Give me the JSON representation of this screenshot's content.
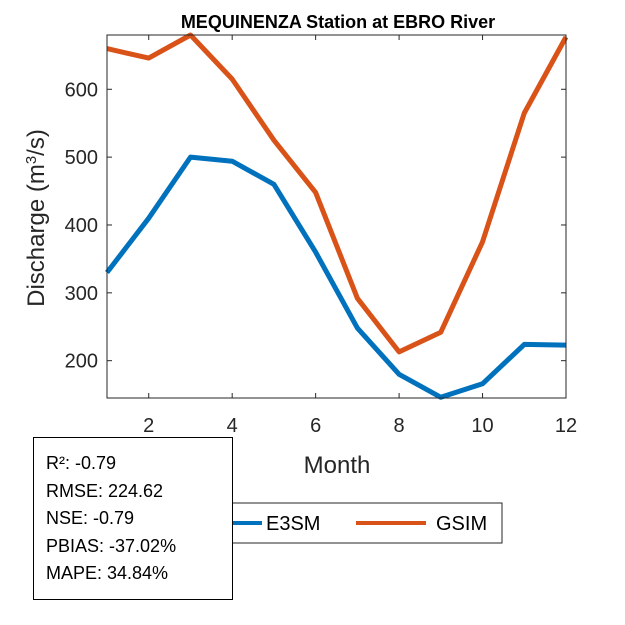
{
  "chart_data": {
    "type": "line",
    "title": "MEQUINENZA  Station at  EBRO  River",
    "xlabel": "Month",
    "ylabel_main": "Discharge (m",
    "ylabel_sup": "3",
    "ylabel_end": "/s)",
    "xlim": [
      1,
      12
    ],
    "ylim": [
      145,
      680
    ],
    "xticks": [
      2,
      4,
      6,
      8,
      10,
      12
    ],
    "yticks": [
      200,
      300,
      400,
      500,
      600
    ],
    "x": [
      1,
      2,
      3,
      4,
      5,
      6,
      7,
      8,
      9,
      10,
      11,
      12
    ],
    "series": [
      {
        "name": "E3SM",
        "color": "#0072BD",
        "values": [
          330,
          410,
          500,
          494,
          460,
          360,
          248,
          180,
          146,
          166,
          224,
          223
        ]
      },
      {
        "name": "GSIM",
        "color": "#D95319",
        "values": [
          660,
          646,
          680,
          615,
          525,
          448,
          292,
          213,
          242,
          375,
          565,
          677
        ]
      }
    ],
    "legend_location": "bottom"
  },
  "stats": {
    "r2": "R²: -0.79",
    "rmse": "RMSE: 224.62",
    "nse": "NSE: -0.79",
    "pbias": "PBIAS: -37.02%",
    "mape": "MAPE: 34.84%"
  }
}
